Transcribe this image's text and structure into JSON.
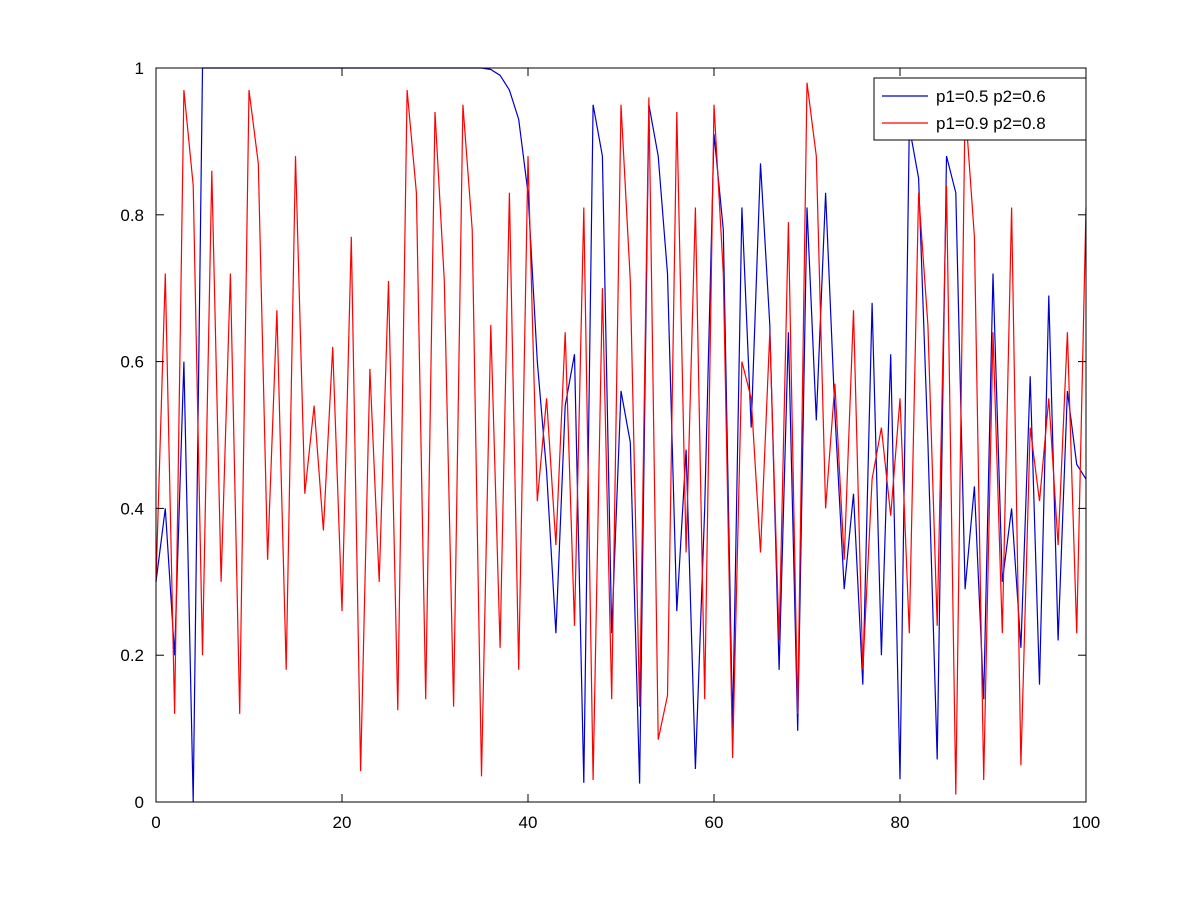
{
  "chart_data": {
    "type": "line",
    "title": "",
    "xlabel": "",
    "ylabel": "",
    "xlim": [
      0,
      100
    ],
    "ylim": [
      0,
      1
    ],
    "x_ticks": [
      0,
      20,
      40,
      60,
      80,
      100
    ],
    "y_ticks": [
      0,
      0.2,
      0.4,
      0.6,
      0.8,
      1
    ],
    "x_tick_labels": [
      "0",
      "20",
      "40",
      "60",
      "80",
      "100"
    ],
    "y_tick_labels": [
      "0",
      "0.2",
      "0.4",
      "0.6",
      "0.8",
      "1"
    ],
    "grid": false,
    "legend_position": "top-right",
    "series": [
      {
        "name": "p1=0.5 p2=0.6",
        "color": "#0000cc",
        "x": [
          0,
          1,
          2,
          3,
          4,
          5,
          6,
          7,
          8,
          9,
          10,
          11,
          12,
          13,
          14,
          15,
          16,
          17,
          18,
          19,
          20,
          21,
          22,
          23,
          24,
          25,
          26,
          27,
          28,
          29,
          30,
          31,
          32,
          33,
          34,
          35,
          36,
          37,
          38,
          39,
          40,
          41,
          42,
          43,
          44,
          45,
          46,
          47,
          48,
          49,
          50,
          51,
          52,
          53,
          54,
          55,
          56,
          57,
          58,
          59,
          60,
          61,
          62,
          63,
          64,
          65,
          66,
          67,
          68,
          69,
          70,
          71,
          72,
          73,
          74,
          75,
          76,
          77,
          78,
          79,
          80,
          81,
          82,
          83,
          84,
          85,
          86,
          87,
          88,
          89,
          90,
          91,
          92,
          93,
          94,
          95,
          96,
          97,
          98,
          99,
          100
        ],
        "y": [
          0.3,
          0.4,
          0.2,
          0.6,
          0.0,
          1.0,
          1.0,
          1.0,
          1.0,
          1.0,
          1.0,
          1.0,
          1.0,
          1.0,
          1.0,
          1.0,
          1.0,
          1.0,
          1.0,
          1.0,
          1.0,
          1.0,
          1.0,
          1.0,
          1.0,
          1.0,
          1.0,
          1.0,
          1.0,
          1.0,
          1.0,
          1.0,
          1.0,
          1.0,
          1.0,
          1.0,
          0.998,
          0.99,
          0.97,
          0.93,
          0.83,
          0.6,
          0.45,
          0.23,
          0.54,
          0.61,
          0.026,
          0.95,
          0.88,
          0.23,
          0.56,
          0.49,
          0.025,
          0.95,
          0.88,
          0.72,
          0.26,
          0.48,
          0.045,
          0.4,
          0.91,
          0.78,
          0.1,
          0.81,
          0.51,
          0.87,
          0.65,
          0.18,
          0.64,
          0.097,
          0.81,
          0.52,
          0.83,
          0.53,
          0.29,
          0.42,
          0.16,
          0.68,
          0.2,
          0.61,
          0.031,
          0.92,
          0.85,
          0.49,
          0.058,
          0.88,
          0.83,
          0.29,
          0.43,
          0.14,
          0.72,
          0.3,
          0.4,
          0.21,
          0.58,
          0.16,
          0.69,
          0.22,
          0.56,
          0.46,
          0.44
        ]
      },
      {
        "name": "p1=0.9 p2=0.8",
        "color": "#ff0000",
        "x": [
          0,
          1,
          2,
          3,
          4,
          5,
          6,
          7,
          8,
          9,
          10,
          11,
          12,
          13,
          14,
          15,
          16,
          17,
          18,
          19,
          20,
          21,
          22,
          23,
          24,
          25,
          26,
          27,
          28,
          29,
          30,
          31,
          32,
          33,
          34,
          35,
          36,
          37,
          38,
          39,
          40,
          41,
          42,
          43,
          44,
          45,
          46,
          47,
          48,
          49,
          50,
          51,
          52,
          53,
          54,
          55,
          56,
          57,
          58,
          59,
          60,
          61,
          62,
          63,
          64,
          65,
          66,
          67,
          68,
          69,
          70,
          71,
          72,
          73,
          74,
          75,
          76,
          77,
          78,
          79,
          80,
          81,
          82,
          83,
          84,
          85,
          86,
          87,
          88,
          89,
          90,
          91,
          92,
          93,
          94,
          95,
          96,
          97,
          98,
          99,
          100
        ],
        "y": [
          0.3,
          0.72,
          0.12,
          0.97,
          0.84,
          0.2,
          0.86,
          0.3,
          0.72,
          0.12,
          0.97,
          0.87,
          0.33,
          0.67,
          0.18,
          0.88,
          0.42,
          0.54,
          0.37,
          0.62,
          0.26,
          0.77,
          0.042,
          0.59,
          0.3,
          0.71,
          0.125,
          0.97,
          0.83,
          0.14,
          0.94,
          0.71,
          0.13,
          0.95,
          0.78,
          0.035,
          0.65,
          0.21,
          0.83,
          0.18,
          0.88,
          0.41,
          0.55,
          0.35,
          0.64,
          0.24,
          0.81,
          0.03,
          0.7,
          0.14,
          0.95,
          0.71,
          0.13,
          0.96,
          0.085,
          0.145,
          0.94,
          0.34,
          0.81,
          0.14,
          0.95,
          0.72,
          0.06,
          0.6,
          0.55,
          0.34,
          0.64,
          0.22,
          0.79,
          0.12,
          0.98,
          0.88,
          0.4,
          0.57,
          0.33,
          0.67,
          0.18,
          0.44,
          0.51,
          0.39,
          0.55,
          0.23,
          0.83,
          0.65,
          0.24,
          0.84,
          0.01,
          0.95,
          0.77,
          0.03,
          0.64,
          0.23,
          0.81,
          0.05,
          0.51,
          0.41,
          0.55,
          0.35,
          0.64,
          0.23,
          0.81
        ]
      }
    ]
  }
}
